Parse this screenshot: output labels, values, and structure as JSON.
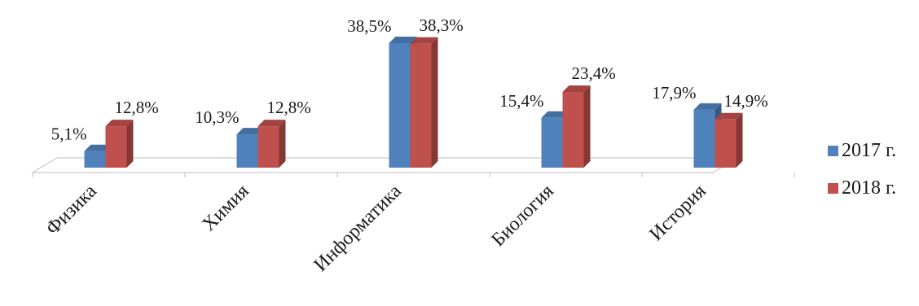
{
  "chart_data": {
    "type": "bar",
    "categories": [
      "Физика",
      "Химия",
      "Информатика",
      "Биология",
      "История"
    ],
    "series": [
      {
        "name": "2017 г.",
        "values": [
          5.1,
          10.3,
          38.5,
          15.4,
          17.9
        ],
        "labels": [
          "5,1%",
          "10,3%",
          "38,5%",
          "15,4%",
          "17,9%"
        ],
        "color": "#4F81BD"
      },
      {
        "name": "2018 г.",
        "values": [
          12.8,
          12.8,
          38.3,
          23.4,
          14.9
        ],
        "labels": [
          "12,8%",
          "12,8%",
          "38,3%",
          "23,4%",
          "14,9%"
        ],
        "color": "#C0504D"
      }
    ],
    "ylim": [
      0,
      40
    ],
    "grid": false,
    "legend": "right",
    "title": "",
    "xlabel": "",
    "ylabel": ""
  }
}
